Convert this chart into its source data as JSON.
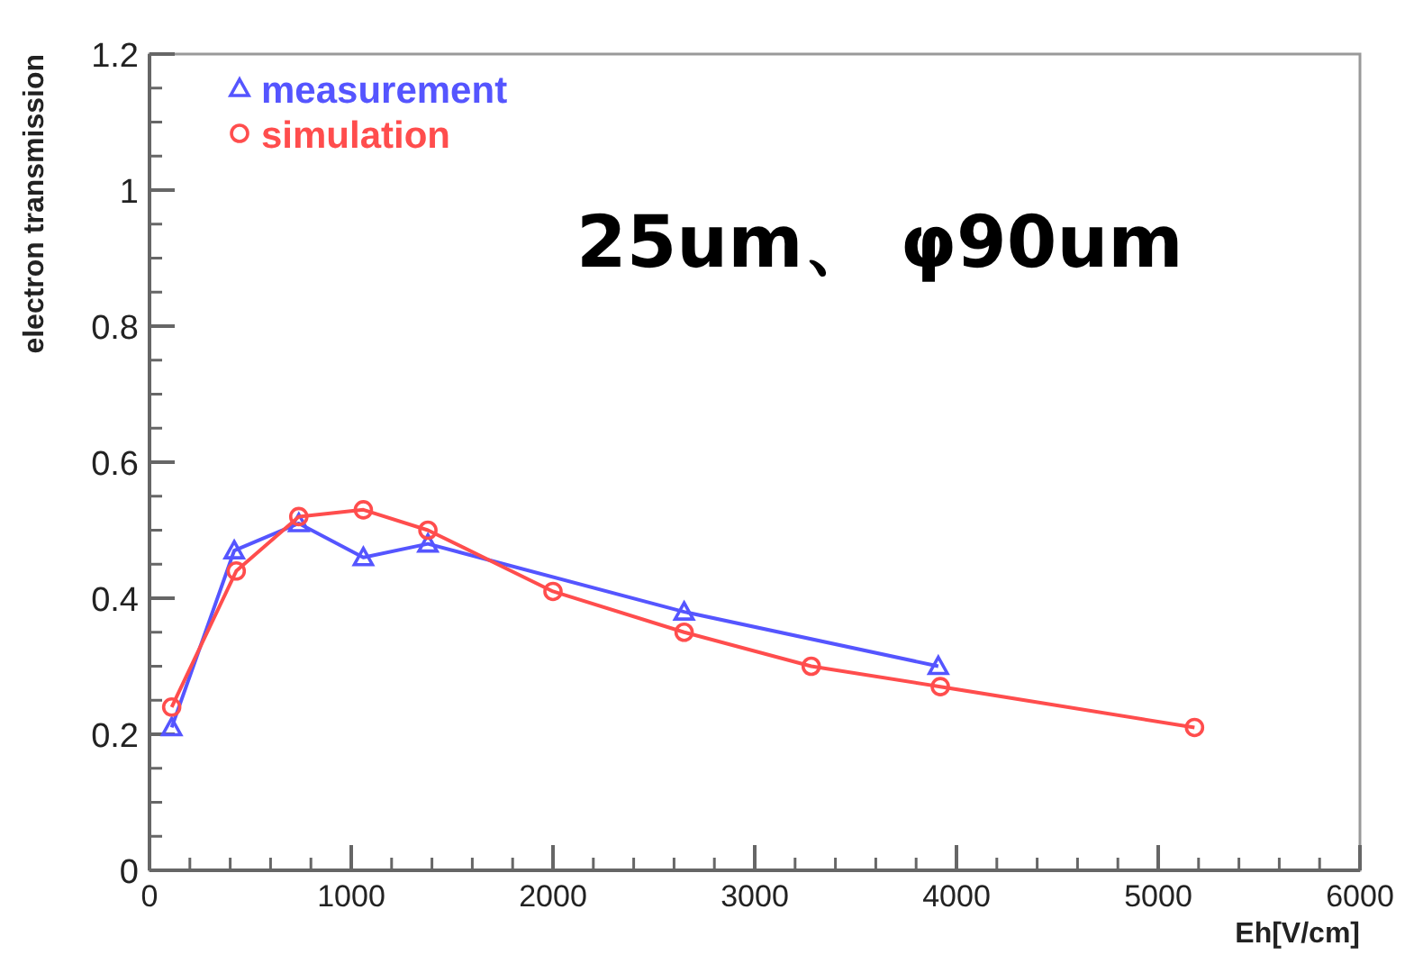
{
  "chart_data": {
    "type": "line",
    "xlabel": "Eh[V/cm]",
    "ylabel": "electron transmission",
    "annotations": [
      "25um、 φ90um"
    ],
    "xlim": [
      0,
      6000
    ],
    "xticks": [
      0,
      1000,
      2000,
      3000,
      4000,
      5000,
      6000
    ],
    "ylim": [
      0,
      1.2
    ],
    "yticks": [
      0,
      0.2,
      0.4,
      0.6,
      0.8,
      1,
      1.2
    ],
    "legend": "top left",
    "grid": false,
    "series": [
      {
        "name": "measurement",
        "color": "#5555ff",
        "marker": "triangle",
        "x": [
          110,
          420,
          740,
          1060,
          1380,
          2650,
          3910
        ],
        "values": [
          0.21,
          0.47,
          0.51,
          0.46,
          0.48,
          0.38,
          0.3
        ]
      },
      {
        "name": "simulation",
        "color": "#ff4d4d",
        "marker": "circle",
        "x": [
          110,
          430,
          740,
          1060,
          1380,
          2000,
          2650,
          3280,
          3920,
          5180
        ],
        "values": [
          0.24,
          0.44,
          0.52,
          0.53,
          0.5,
          0.41,
          0.35,
          0.3,
          0.27,
          0.21
        ]
      }
    ]
  }
}
